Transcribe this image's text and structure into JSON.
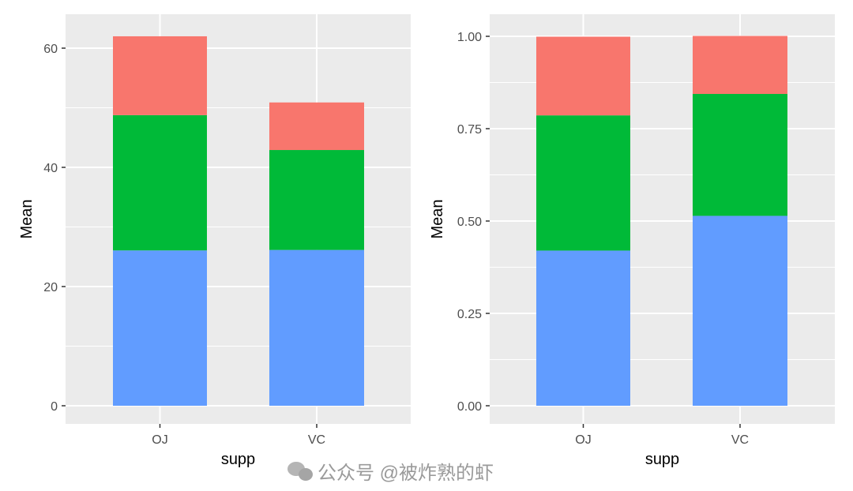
{
  "colors": {
    "panel_bg": "#EBEBEB",
    "grid": "#FFFFFF",
    "dose_0_5": "#F8766D",
    "dose_1": "#00BA38",
    "dose_2": "#619CFF"
  },
  "watermark": {
    "text": "公众号 @被炸熟的虾",
    "icon": "wechat-icon"
  },
  "chart_data": [
    {
      "type": "bar",
      "stacked": true,
      "categories": [
        "OJ",
        "VC"
      ],
      "xlabel": "supp",
      "ylabel": "Mean",
      "ylim": [
        0,
        63
      ],
      "yticks": [
        0,
        20,
        40,
        60
      ],
      "ytick_labels": [
        "0",
        "20",
        "40",
        "60"
      ],
      "grid": true,
      "series": [
        {
          "color": "#619CFF",
          "values": [
            26.06,
            26.14
          ]
        },
        {
          "color": "#00BA38",
          "values": [
            22.7,
            16.77
          ]
        },
        {
          "color": "#F8766D",
          "values": [
            13.23,
            7.98
          ]
        }
      ]
    },
    {
      "type": "bar",
      "stacked": true,
      "normalized": true,
      "categories": [
        "OJ",
        "VC"
      ],
      "xlabel": "supp",
      "ylabel": "Mean",
      "ylim": [
        0,
        1.05
      ],
      "yticks": [
        0,
        0.25,
        0.5,
        0.75,
        1.0
      ],
      "ytick_labels": [
        "0.00",
        "0.25",
        "0.50",
        "0.75",
        "1.00"
      ],
      "grid": true,
      "series": [
        {
          "color": "#619CFF",
          "values": [
            0.42,
            0.514
          ]
        },
        {
          "color": "#00BA38",
          "values": [
            0.366,
            0.33
          ]
        },
        {
          "color": "#F8766D",
          "values": [
            0.213,
            0.157
          ]
        }
      ]
    }
  ]
}
